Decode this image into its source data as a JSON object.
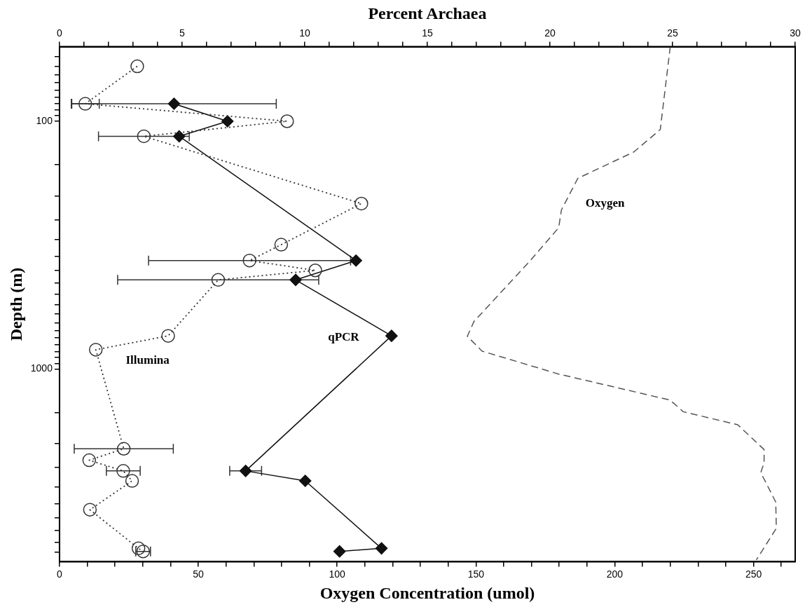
{
  "chart_data": {
    "type": "line",
    "xlabel": "Oxygen Concentration (umol)",
    "x2label": "Percent Archaea",
    "ylabel": "Depth (m)",
    "log": "y",
    "xlim": [
      0,
      265
    ],
    "xticks": [
      0,
      {
        "value": 10,
        "label": null
      },
      {
        "value": 20,
        "label": null
      },
      {
        "value": 30,
        "label": null
      },
      {
        "value": 40,
        "label": null
      },
      50,
      {
        "value": 60,
        "label": null
      },
      {
        "value": 70,
        "label": null
      },
      {
        "value": 80,
        "label": null
      },
      {
        "value": 90,
        "label": null
      },
      100,
      {
        "value": 110,
        "label": null
      },
      {
        "value": 120,
        "label": null
      },
      {
        "value": 130,
        "label": null
      },
      {
        "value": 140,
        "label": null
      },
      150,
      {
        "value": 160,
        "label": null
      },
      {
        "value": 170,
        "label": null
      },
      {
        "value": 180,
        "label": null
      },
      {
        "value": 190,
        "label": null
      },
      200,
      {
        "value": 210,
        "label": null
      },
      {
        "value": 220,
        "label": null
      },
      {
        "value": 230,
        "label": null
      },
      {
        "value": 240,
        "label": null
      },
      250,
      {
        "value": 260,
        "label": null
      }
    ],
    "x2lim": [
      0,
      30
    ],
    "x2ticks": [
      0,
      {
        "value": 1,
        "label": null
      },
      {
        "value": 2,
        "label": null
      },
      {
        "value": 3,
        "label": null
      },
      {
        "value": 4,
        "label": null
      },
      5,
      {
        "value": 6,
        "label": null
      },
      {
        "value": 7,
        "label": null
      },
      {
        "value": 8,
        "label": null
      },
      {
        "value": 9,
        "label": null
      },
      10,
      {
        "value": 11,
        "label": null
      },
      {
        "value": 12,
        "label": null
      },
      {
        "value": 13,
        "label": null
      },
      {
        "value": 14,
        "label": null
      },
      15,
      {
        "value": 16,
        "label": null
      },
      {
        "value": 17,
        "label": null
      },
      {
        "value": 18,
        "label": null
      },
      {
        "value": 19,
        "label": null
      },
      20,
      {
        "value": 21,
        "label": null
      },
      {
        "value": 22,
        "label": null
      },
      {
        "value": 23,
        "label": null
      },
      {
        "value": 24,
        "label": null
      },
      25,
      {
        "value": 26,
        "label": null
      },
      {
        "value": 27,
        "label": null
      },
      {
        "value": 28,
        "label": null
      },
      {
        "value": 29,
        "label": null
      },
      30
    ],
    "ylim": [
      6000,
      50
    ],
    "yticks": [
      {
        "value": 55,
        "label": null
      },
      {
        "value": 60,
        "label": null
      },
      {
        "value": 65,
        "label": null
      },
      {
        "value": 70,
        "label": null
      },
      {
        "value": 75,
        "label": null
      },
      {
        "value": 80,
        "label": null
      },
      {
        "value": 85,
        "label": null
      },
      {
        "value": 90,
        "label": null
      },
      {
        "value": 95,
        "label": null
      },
      100,
      {
        "value": 150,
        "label": null
      },
      {
        "value": 200,
        "label": null
      },
      {
        "value": 250,
        "label": null
      },
      {
        "value": 300,
        "label": null
      },
      {
        "value": 350,
        "label": null
      },
      {
        "value": 400,
        "label": null
      },
      {
        "value": 450,
        "label": null
      },
      {
        "value": 500,
        "label": null
      },
      {
        "value": 550,
        "label": null
      },
      {
        "value": 600,
        "label": null
      },
      {
        "value": 650,
        "label": null
      },
      {
        "value": 700,
        "label": null
      },
      {
        "value": 750,
        "label": null
      },
      {
        "value": 800,
        "label": null
      },
      {
        "value": 850,
        "label": null
      },
      {
        "value": 900,
        "label": null
      },
      {
        "value": 950,
        "label": null
      },
      1000,
      {
        "value": 1500,
        "label": null
      },
      {
        "value": 2000,
        "label": null
      },
      {
        "value": 2500,
        "label": null
      },
      {
        "value": 3000,
        "label": null
      },
      {
        "value": 3500,
        "label": null
      },
      {
        "value": 4000,
        "label": null
      },
      {
        "value": 4500,
        "label": null
      },
      {
        "value": 5000,
        "label": null
      },
      {
        "value": 5500,
        "label": null
      }
    ],
    "series": [
      {
        "name": "Illumina",
        "axis": "x2",
        "color": "#333333",
        "marker": "circle",
        "line_style": "dotted",
        "x": [
          3.17,
          1.05,
          9.28,
          3.44,
          12.31,
          9.04,
          7.75,
          10.43,
          6.47,
          4.43,
          1.48,
          2.62,
          1.21,
          2.6,
          2.96,
          1.24,
          3.22,
          3.41
        ],
        "values": [
          60,
          85,
          100,
          115,
          215,
          315,
          365,
          400,
          437,
          735,
          836,
          2100,
          2335,
          2580,
          2830,
          3700,
          5300,
          5450
        ],
        "xerrors": [
          null,
          0.57,
          null,
          1.85,
          null,
          null,
          4.12,
          null,
          4.1,
          null,
          null,
          2.02,
          null,
          0.69,
          null,
          null,
          null,
          0.3
        ]
      },
      {
        "name": "qPCR",
        "axis": "x2",
        "color": "#111111",
        "marker": "diamond",
        "line_style": "solid",
        "x": [
          4.67,
          6.85,
          4.88,
          12.09,
          9.63,
          13.54,
          7.59,
          10.02,
          13.13,
          11.42
        ],
        "values": [
          85,
          100,
          115,
          365,
          437,
          735,
          2580,
          2830,
          5300,
          5450
        ],
        "xerrors": [
          4.17,
          null,
          null,
          null,
          null,
          null,
          0.65,
          null,
          null,
          null
        ]
      },
      {
        "name": "Oxygen",
        "color": "#555555",
        "marker": "none",
        "line_style": "dashed",
        "x": [
          220,
          216.4,
          206.9,
          186.7,
          180.8,
          179.8,
          169.5,
          149.3,
          146.9,
          152.2,
          179.6,
          219.9,
          224.7,
          244.3,
          253.8,
          253.8,
          252.6,
          258,
          258.2,
          251
        ],
        "values": [
          50,
          108,
          133,
          170,
          228,
          269,
          366,
          643,
          738,
          847,
          1047,
          1335,
          1488,
          1680,
          2115,
          2390,
          2620,
          3445,
          4400,
          5900
        ]
      }
    ]
  }
}
